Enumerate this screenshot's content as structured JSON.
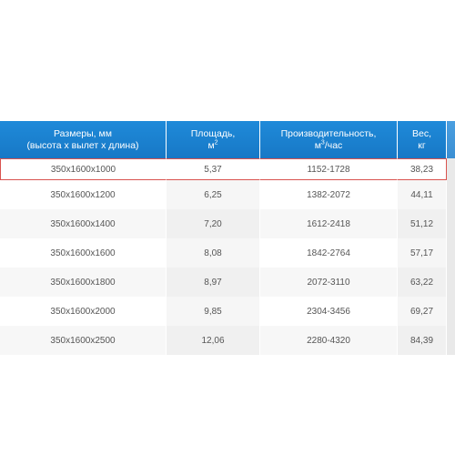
{
  "table": {
    "headers": {
      "size_line1": "Размеры, мм",
      "size_line2": "(высота х вылет х длина)",
      "area_line1": "Площадь,",
      "area_unit_base": "м",
      "area_unit_exp": "2",
      "perf_line1": "Производительность,",
      "perf_unit_base": "м",
      "perf_unit_exp": "3",
      "perf_unit_rest": "/час",
      "weight_line1": "Вес,",
      "weight_line2": "кг"
    },
    "rows": [
      {
        "size": "350x1600x1000",
        "area": "5,37",
        "performance": "1152-1728",
        "weight": "38,23"
      },
      {
        "size": "350x1600x1200",
        "area": "6,25",
        "performance": "1382-2072",
        "weight": "44,11"
      },
      {
        "size": "350x1600x1400",
        "area": "7,20",
        "performance": "1612-2418",
        "weight": "51,12"
      },
      {
        "size": "350x1600x1600",
        "area": "8,08",
        "performance": "1842-2764",
        "weight": "57,17"
      },
      {
        "size": "350x1600x1800",
        "area": "8,97",
        "performance": "2072-3110",
        "weight": "63,22"
      },
      {
        "size": "350x1600x2000",
        "area": "9,85",
        "performance": "2304-3456",
        "weight": "69,27"
      },
      {
        "size": "350x1600x2500",
        "area": "12,06",
        "performance": "2280-4320",
        "weight": "84,39"
      }
    ],
    "highlight_color": "#d9534f",
    "header_color": "#1778c6"
  }
}
